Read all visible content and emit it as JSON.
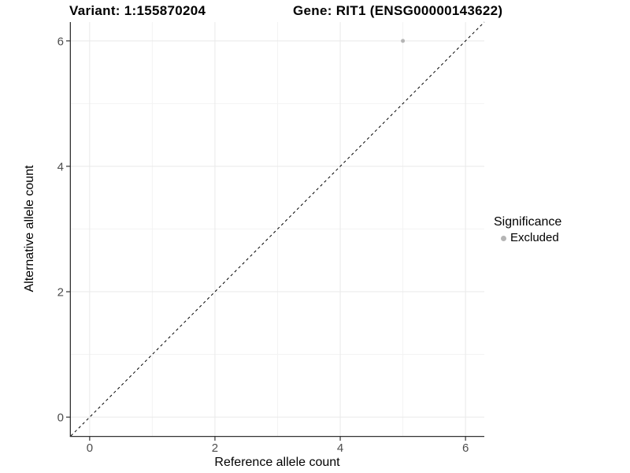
{
  "header": {
    "variant_title": "Variant: 1:155870204",
    "gene_title": "Gene: RIT1 (ENSG00000143622)"
  },
  "chart_data": {
    "type": "scatter",
    "title": "Variant: 1:155870204 — Gene: RIT1 (ENSG00000143622)",
    "xlabel": "Reference allele count",
    "ylabel": "Alternative allele count",
    "xlim": [
      -0.3,
      6.3
    ],
    "ylim": [
      -0.3,
      6.3
    ],
    "xticks": [
      0,
      2,
      4,
      6
    ],
    "yticks": [
      0,
      2,
      4,
      6
    ],
    "x_minor_ticks": [
      1,
      3,
      5
    ],
    "y_minor_ticks": [
      1,
      3,
      5
    ],
    "grid": "on",
    "series": [
      {
        "name": "Excluded",
        "points": [
          {
            "x": 5,
            "y": 6
          }
        ]
      }
    ],
    "identity_line": {
      "equation": "y = x",
      "style": "dashed",
      "color": "#000000"
    },
    "colors": {
      "point": "#b5b5b5",
      "grid_major": "#e9e9e9",
      "grid_minor": "#f3f3f3",
      "axis_line": "#333333",
      "tick_label": "#4d4d4d"
    },
    "legend": {
      "position": "right",
      "title": "Significance",
      "items": [
        {
          "label": "Excluded",
          "marker": "circle-icon",
          "color": "#b5b5b5"
        }
      ]
    }
  }
}
